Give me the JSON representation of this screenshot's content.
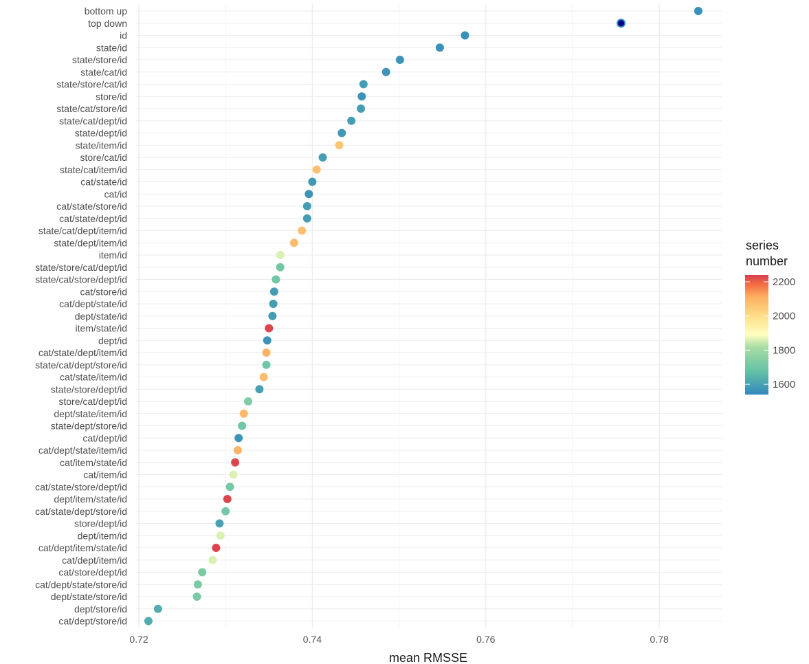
{
  "chart_data": {
    "type": "scatter",
    "title": "",
    "xlabel": "mean RMSSE",
    "ylabel": "",
    "xlim": [
      0.7196,
      0.7872
    ],
    "x_ticks": [
      0.72,
      0.74,
      0.76,
      0.78
    ],
    "x_tick_labels": [
      "0.72",
      "0.74",
      "0.76",
      "0.78"
    ],
    "grid": true,
    "legend": {
      "title": [
        "series",
        "number"
      ],
      "placement": "right",
      "ticks": [
        1600,
        1800,
        2000,
        2200
      ],
      "tick_labels": [
        "1600",
        "1800",
        "2000",
        "2200"
      ],
      "range": [
        1540,
        2240
      ],
      "palette": "Spectral"
    },
    "points": [
      {
        "label": "bottom up",
        "x": 0.7845,
        "series_number": 1560
      },
      {
        "label": "top down",
        "x": 0.7756,
        "series_number": 1540,
        "highlight_color": "#00008b"
      },
      {
        "label": "id",
        "x": 0.7576,
        "series_number": 1560
      },
      {
        "label": "state/id",
        "x": 0.7547,
        "series_number": 1560
      },
      {
        "label": "state/store/id",
        "x": 0.7501,
        "series_number": 1570
      },
      {
        "label": "state/cat/id",
        "x": 0.7485,
        "series_number": 1570
      },
      {
        "label": "state/store/cat/id",
        "x": 0.7459,
        "series_number": 1590
      },
      {
        "label": "store/id",
        "x": 0.7457,
        "series_number": 1570
      },
      {
        "label": "state/cat/store/id",
        "x": 0.7456,
        "series_number": 1590
      },
      {
        "label": "state/cat/dept/id",
        "x": 0.7445,
        "series_number": 1590
      },
      {
        "label": "state/dept/id",
        "x": 0.7434,
        "series_number": 1580
      },
      {
        "label": "state/item/id",
        "x": 0.7431,
        "series_number": 2060
      },
      {
        "label": "store/cat/id",
        "x": 0.7412,
        "series_number": 1590
      },
      {
        "label": "state/cat/item/id",
        "x": 0.7405,
        "series_number": 2070
      },
      {
        "label": "cat/state/id",
        "x": 0.74,
        "series_number": 1580
      },
      {
        "label": "cat/id",
        "x": 0.7396,
        "series_number": 1570
      },
      {
        "label": "cat/state/store/id",
        "x": 0.7394,
        "series_number": 1590
      },
      {
        "label": "cat/state/dept/id",
        "x": 0.7394,
        "series_number": 1590
      },
      {
        "label": "state/cat/dept/item/id",
        "x": 0.7388,
        "series_number": 2070
      },
      {
        "label": "state/dept/item/id",
        "x": 0.7379,
        "series_number": 2080
      },
      {
        "label": "item/id",
        "x": 0.7363,
        "series_number": 1860
      },
      {
        "label": "state/store/cat/dept/id",
        "x": 0.7363,
        "series_number": 1700
      },
      {
        "label": "state/cat/store/dept/id",
        "x": 0.7358,
        "series_number": 1700
      },
      {
        "label": "cat/store/id",
        "x": 0.7356,
        "series_number": 1590
      },
      {
        "label": "cat/dept/state/id",
        "x": 0.7355,
        "series_number": 1590
      },
      {
        "label": "dept/state/id",
        "x": 0.7354,
        "series_number": 1590
      },
      {
        "label": "item/state/id",
        "x": 0.735,
        "series_number": 2230
      },
      {
        "label": "dept/id",
        "x": 0.7348,
        "series_number": 1570
      },
      {
        "label": "cat/state/dept/item/id",
        "x": 0.7347,
        "series_number": 2100
      },
      {
        "label": "state/cat/dept/store/id",
        "x": 0.7347,
        "series_number": 1700
      },
      {
        "label": "cat/state/item/id",
        "x": 0.7344,
        "series_number": 2080
      },
      {
        "label": "state/store/dept/id",
        "x": 0.7339,
        "series_number": 1600
      },
      {
        "label": "store/cat/dept/id",
        "x": 0.7326,
        "series_number": 1730
      },
      {
        "label": "dept/state/item/id",
        "x": 0.7321,
        "series_number": 2090
      },
      {
        "label": "state/dept/store/id",
        "x": 0.7319,
        "series_number": 1700
      },
      {
        "label": "cat/dept/id",
        "x": 0.7315,
        "series_number": 1570
      },
      {
        "label": "cat/dept/state/item/id",
        "x": 0.7314,
        "series_number": 2100
      },
      {
        "label": "cat/item/state/id",
        "x": 0.7311,
        "series_number": 2230
      },
      {
        "label": "cat/item/id",
        "x": 0.7309,
        "series_number": 1860
      },
      {
        "label": "cat/state/store/dept/id",
        "x": 0.7305,
        "series_number": 1710
      },
      {
        "label": "dept/item/state/id",
        "x": 0.7302,
        "series_number": 2230
      },
      {
        "label": "cat/state/dept/store/id",
        "x": 0.73,
        "series_number": 1710
      },
      {
        "label": "store/dept/id",
        "x": 0.7293,
        "series_number": 1600
      },
      {
        "label": "dept/item/id",
        "x": 0.7294,
        "series_number": 1860
      },
      {
        "label": "cat/dept/item/state/id",
        "x": 0.7289,
        "series_number": 2230
      },
      {
        "label": "cat/dept/item/id",
        "x": 0.7285,
        "series_number": 1860
      },
      {
        "label": "cat/store/dept/id",
        "x": 0.7273,
        "series_number": 1720
      },
      {
        "label": "cat/dept/state/store/id",
        "x": 0.7268,
        "series_number": 1720
      },
      {
        "label": "dept/state/store/id",
        "x": 0.7267,
        "series_number": 1720
      },
      {
        "label": "dept/store/id",
        "x": 0.7222,
        "series_number": 1630
      },
      {
        "label": "cat/dept/store/id",
        "x": 0.7211,
        "series_number": 1630
      }
    ]
  }
}
